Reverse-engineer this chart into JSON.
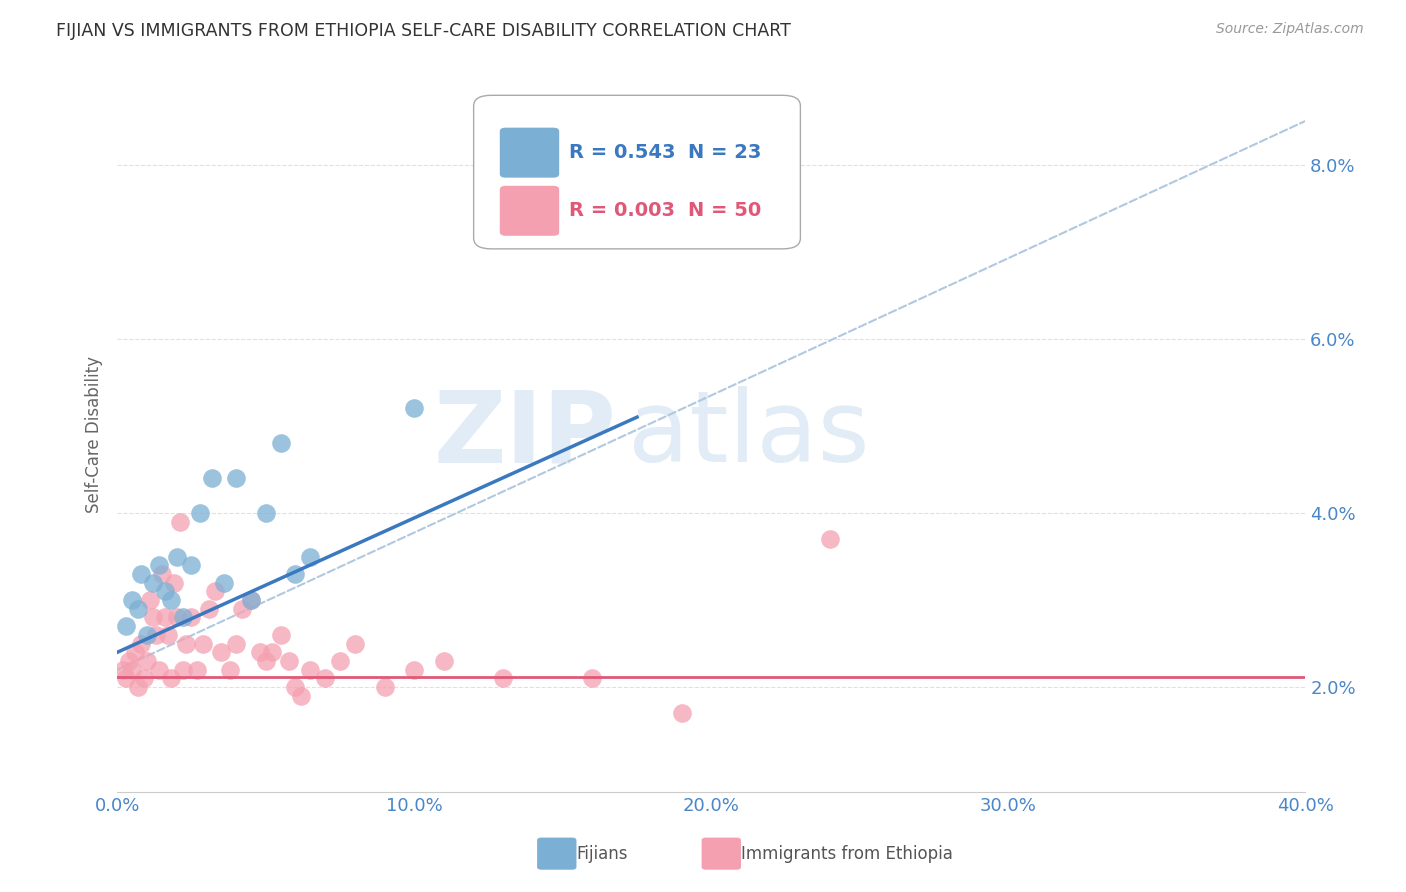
{
  "title": "FIJIAN VS IMMIGRANTS FROM ETHIOPIA SELF-CARE DISABILITY CORRELATION CHART",
  "source": "Source: ZipAtlas.com",
  "ylabel": "Self-Care Disability",
  "xlim": [
    0.0,
    0.4
  ],
  "ylim": [
    0.008,
    0.09
  ],
  "yticks": [
    0.02,
    0.04,
    0.06,
    0.08
  ],
  "ytick_labels": [
    "2.0%",
    "4.0%",
    "6.0%",
    "8.0%"
  ],
  "xticks": [
    0.0,
    0.1,
    0.2,
    0.3,
    0.4
  ],
  "xtick_labels": [
    "0.0%",
    "10.0%",
    "20.0%",
    "30.0%",
    "40.0%"
  ],
  "fijian_color": "#7bafd4",
  "ethiopia_color": "#f4a0b0",
  "fijian_R": 0.543,
  "fijian_N": 23,
  "ethiopia_R": 0.003,
  "ethiopia_N": 50,
  "fijian_scatter_x": [
    0.003,
    0.005,
    0.007,
    0.008,
    0.01,
    0.012,
    0.014,
    0.016,
    0.018,
    0.02,
    0.022,
    0.025,
    0.028,
    0.032,
    0.036,
    0.04,
    0.045,
    0.05,
    0.055,
    0.06,
    0.065,
    0.1,
    0.13
  ],
  "fijian_scatter_y": [
    0.027,
    0.03,
    0.029,
    0.033,
    0.026,
    0.032,
    0.034,
    0.031,
    0.03,
    0.035,
    0.028,
    0.034,
    0.04,
    0.044,
    0.032,
    0.044,
    0.03,
    0.04,
    0.048,
    0.033,
    0.035,
    0.052,
    0.073
  ],
  "ethiopia_scatter_x": [
    0.002,
    0.003,
    0.004,
    0.005,
    0.006,
    0.007,
    0.008,
    0.009,
    0.01,
    0.011,
    0.012,
    0.013,
    0.014,
    0.015,
    0.016,
    0.017,
    0.018,
    0.019,
    0.02,
    0.021,
    0.022,
    0.023,
    0.025,
    0.027,
    0.029,
    0.031,
    0.033,
    0.035,
    0.038,
    0.04,
    0.042,
    0.045,
    0.048,
    0.05,
    0.052,
    0.055,
    0.058,
    0.06,
    0.062,
    0.065,
    0.07,
    0.075,
    0.08,
    0.09,
    0.1,
    0.11,
    0.13,
    0.16,
    0.19,
    0.24
  ],
  "ethiopia_scatter_y": [
    0.022,
    0.021,
    0.023,
    0.022,
    0.024,
    0.02,
    0.025,
    0.021,
    0.023,
    0.03,
    0.028,
    0.026,
    0.022,
    0.033,
    0.028,
    0.026,
    0.021,
    0.032,
    0.028,
    0.039,
    0.022,
    0.025,
    0.028,
    0.022,
    0.025,
    0.029,
    0.031,
    0.024,
    0.022,
    0.025,
    0.029,
    0.03,
    0.024,
    0.023,
    0.024,
    0.026,
    0.023,
    0.02,
    0.019,
    0.022,
    0.021,
    0.023,
    0.025,
    0.02,
    0.022,
    0.023,
    0.021,
    0.021,
    0.017,
    0.037
  ],
  "fijian_line_color": "#3a78c0",
  "ethiopia_line_color": "#e05878",
  "dashed_line_color": "#b0c8e0",
  "fijian_line_x0": 0.0,
  "fijian_line_y0": 0.024,
  "fijian_line_x1": 0.175,
  "fijian_line_y1": 0.051,
  "dashed_line_x0": 0.0,
  "dashed_line_y0": 0.022,
  "dashed_line_x1": 0.4,
  "dashed_line_y1": 0.085,
  "ethiopia_line_y": 0.0212,
  "watermark_zip": "ZIP",
  "watermark_atlas": "atlas",
  "background_color": "#ffffff",
  "grid_color": "#e0e0e0"
}
